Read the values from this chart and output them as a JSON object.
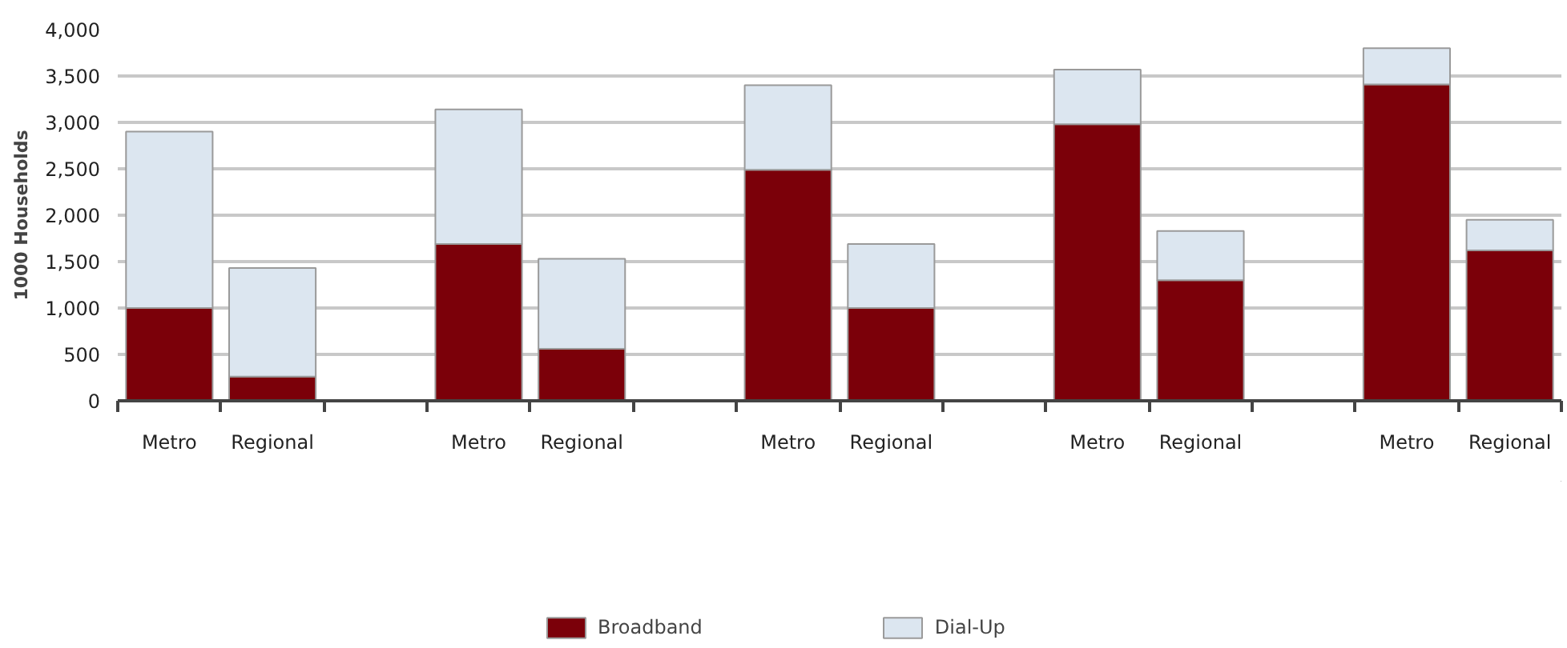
{
  "chart_data": {
    "type": "bar",
    "stacked": true,
    "ylabel": "1000 Households",
    "categories": [
      "Metro",
      "Regional",
      null,
      "Metro",
      "Regional",
      null,
      "Metro",
      "Regional",
      null,
      "Metro",
      "Regional",
      null,
      "Metro",
      "Regional"
    ],
    "series": [
      {
        "name": "Broadband",
        "color": "#7b0009",
        "values": [
          1000,
          260,
          null,
          1690,
          560,
          null,
          2490,
          1000,
          null,
          2980,
          1300,
          null,
          3410,
          1620
        ]
      },
      {
        "name": "Dial-Up",
        "color": "#dce6f0",
        "values": [
          1900,
          1170,
          null,
          1450,
          970,
          null,
          910,
          690,
          null,
          590,
          530,
          null,
          390,
          330
        ]
      }
    ],
    "ylim": [
      0,
      4000
    ],
    "yticks": [
      0,
      500,
      {
        "value": 1000,
        "label": "1,000"
      },
      {
        "value": 1500,
        "label": "1,500"
      },
      {
        "value": 2000,
        "label": "2,000"
      },
      {
        "value": 2500,
        "label": "2,500"
      },
      {
        "value": 3000,
        "label": "3,000"
      },
      {
        "value": 3500,
        "label": "3,500"
      },
      {
        "value": 4000,
        "label": "4,000"
      }
    ],
    "grid": "y",
    "legend": "bottom"
  }
}
